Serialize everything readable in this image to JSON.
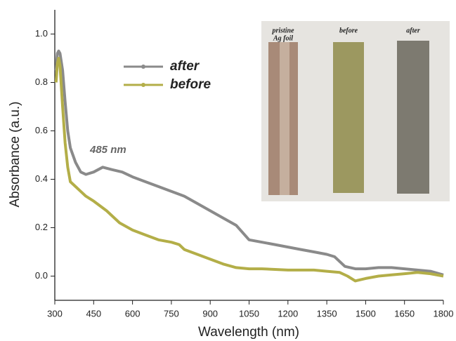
{
  "chart_data": {
    "type": "line",
    "x_label": "Wavelength (nm)",
    "y_label": "Absorbance (a.u.)",
    "annotation": "485 nm",
    "xlim": [
      300,
      1800
    ],
    "xticks": [
      300,
      450,
      600,
      750,
      900,
      1050,
      1200,
      1350,
      1500,
      1650,
      1800
    ],
    "ylim": [
      -0.1,
      1.1
    ],
    "yticks": [
      {
        "value": 0,
        "label": "0.0"
      },
      0.2,
      0.4,
      0.6,
      0.8,
      {
        "value": 1,
        "label": "1.0"
      }
    ],
    "legend": "top-center",
    "series": [
      {
        "name": "after",
        "color": "#8a8a8a",
        "x": [
          305,
          310,
          315,
          320,
          330,
          340,
          350,
          360,
          380,
          400,
          420,
          450,
          485,
          520,
          560,
          600,
          650,
          700,
          750,
          800,
          850,
          900,
          950,
          1000,
          1050,
          1100,
          1150,
          1200,
          1250,
          1300,
          1350,
          1380,
          1420,
          1460,
          1500,
          1550,
          1600,
          1650,
          1700,
          1750,
          1800
        ],
        "values": [
          0.85,
          0.92,
          0.93,
          0.92,
          0.85,
          0.72,
          0.6,
          0.53,
          0.47,
          0.43,
          0.42,
          0.43,
          0.45,
          0.44,
          0.43,
          0.41,
          0.39,
          0.37,
          0.35,
          0.33,
          0.3,
          0.27,
          0.24,
          0.21,
          0.15,
          0.14,
          0.13,
          0.12,
          0.11,
          0.1,
          0.09,
          0.08,
          0.04,
          0.03,
          0.03,
          0.035,
          0.035,
          0.03,
          0.025,
          0.02,
          0.005
        ]
      },
      {
        "name": "before",
        "color": "#b3ae48",
        "x": [
          305,
          310,
          315,
          320,
          330,
          340,
          350,
          360,
          380,
          400,
          420,
          450,
          500,
          550,
          600,
          650,
          700,
          750,
          780,
          800,
          850,
          900,
          950,
          1000,
          1050,
          1100,
          1200,
          1300,
          1350,
          1400,
          1430,
          1460,
          1500,
          1550,
          1600,
          1650,
          1700,
          1750,
          1800
        ],
        "values": [
          0.8,
          0.88,
          0.9,
          0.87,
          0.7,
          0.55,
          0.45,
          0.39,
          0.37,
          0.35,
          0.33,
          0.31,
          0.27,
          0.22,
          0.19,
          0.17,
          0.15,
          0.14,
          0.13,
          0.11,
          0.09,
          0.07,
          0.05,
          0.035,
          0.03,
          0.03,
          0.025,
          0.025,
          0.02,
          0.015,
          0,
          -0.02,
          -0.01,
          0,
          0.005,
          0.01,
          0.015,
          0.01,
          0
        ]
      }
    ]
  },
  "inset": {
    "labels": [
      [
        "pristine",
        "Ag foil"
      ],
      [
        "before"
      ],
      [
        "after"
      ]
    ]
  }
}
